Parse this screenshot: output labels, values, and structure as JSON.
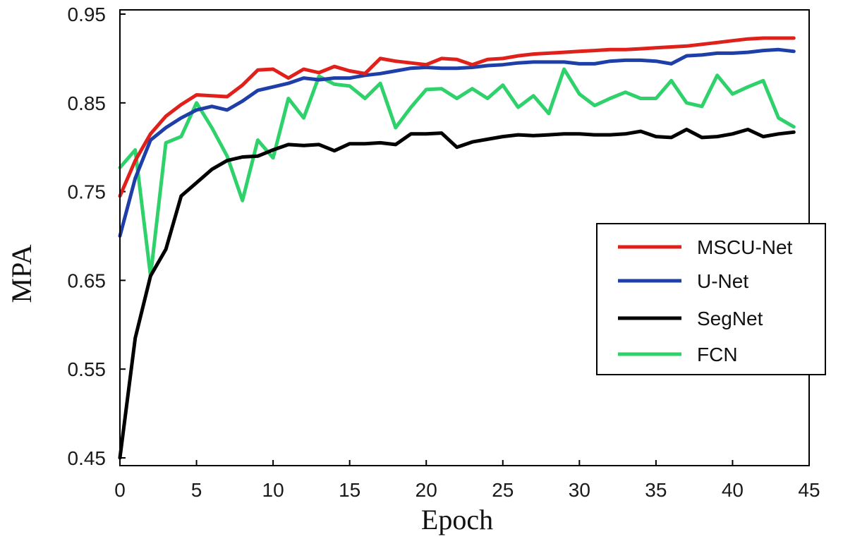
{
  "chart_data": {
    "type": "line",
    "title": "",
    "xlabel": "Epoch",
    "ylabel": "MPA",
    "xlim": [
      0,
      45
    ],
    "ylim": [
      0.45,
      0.95
    ],
    "x_ticks": [
      0,
      5,
      10,
      15,
      20,
      25,
      30,
      35,
      40,
      45
    ],
    "y_ticks": [
      0.45,
      0.55,
      0.65,
      0.75,
      0.85,
      0.95
    ],
    "y_tick_labels": [
      "0.45",
      "0.55",
      "0.65",
      "0.75",
      "0.85",
      "0.95"
    ],
    "grid": false,
    "legend_position": "right",
    "x": [
      0,
      1,
      2,
      3,
      4,
      5,
      6,
      7,
      8,
      9,
      10,
      11,
      12,
      13,
      14,
      15,
      16,
      17,
      18,
      19,
      20,
      21,
      22,
      23,
      24,
      25,
      26,
      27,
      28,
      29,
      30,
      31,
      32,
      33,
      34,
      35,
      36,
      37,
      38,
      39,
      40,
      41,
      42,
      43,
      44
    ],
    "series": [
      {
        "name": "MSCU-Net",
        "color": "#e0201b",
        "values": [
          0.745,
          0.785,
          0.815,
          0.835,
          0.848,
          0.859,
          0.858,
          0.857,
          0.87,
          0.887,
          0.888,
          0.878,
          0.888,
          0.884,
          0.891,
          0.886,
          0.883,
          0.9,
          0.897,
          0.895,
          0.893,
          0.9,
          0.899,
          0.893,
          0.899,
          0.9,
          0.903,
          0.905,
          0.906,
          0.907,
          0.908,
          0.909,
          0.91,
          0.91,
          0.911,
          0.912,
          0.913,
          0.914,
          0.916,
          0.918,
          0.92,
          0.922,
          0.923,
          0.923,
          0.923
        ]
      },
      {
        "name": "U-Net",
        "color": "#1f3fa8",
        "values": [
          0.7,
          0.765,
          0.808,
          0.822,
          0.833,
          0.842,
          0.846,
          0.842,
          0.852,
          0.864,
          0.868,
          0.872,
          0.878,
          0.876,
          0.878,
          0.878,
          0.881,
          0.883,
          0.886,
          0.889,
          0.89,
          0.889,
          0.889,
          0.89,
          0.892,
          0.893,
          0.895,
          0.896,
          0.896,
          0.896,
          0.894,
          0.894,
          0.897,
          0.898,
          0.898,
          0.897,
          0.894,
          0.903,
          0.904,
          0.906,
          0.906,
          0.907,
          0.909,
          0.91,
          0.908
        ]
      },
      {
        "name": "SegNet",
        "color": "#000000",
        "values": [
          0.45,
          0.585,
          0.655,
          0.685,
          0.745,
          0.76,
          0.775,
          0.785,
          0.789,
          0.79,
          0.797,
          0.803,
          0.802,
          0.803,
          0.796,
          0.804,
          0.804,
          0.805,
          0.803,
          0.815,
          0.815,
          0.816,
          0.8,
          0.806,
          0.809,
          0.812,
          0.814,
          0.813,
          0.814,
          0.815,
          0.815,
          0.814,
          0.814,
          0.815,
          0.818,
          0.812,
          0.811,
          0.82,
          0.811,
          0.812,
          0.815,
          0.82,
          0.812,
          0.815,
          0.817
        ]
      },
      {
        "name": "FCN",
        "color": "#2fd16b",
        "values": [
          0.777,
          0.797,
          0.655,
          0.805,
          0.812,
          0.85,
          0.822,
          0.79,
          0.74,
          0.808,
          0.788,
          0.855,
          0.833,
          0.88,
          0.871,
          0.869,
          0.855,
          0.872,
          0.822,
          0.845,
          0.865,
          0.866,
          0.855,
          0.866,
          0.855,
          0.87,
          0.845,
          0.858,
          0.838,
          0.888,
          0.86,
          0.847,
          0.855,
          0.862,
          0.855,
          0.855,
          0.875,
          0.85,
          0.846,
          0.881,
          0.86,
          0.868,
          0.875,
          0.833,
          0.823
        ]
      }
    ]
  }
}
